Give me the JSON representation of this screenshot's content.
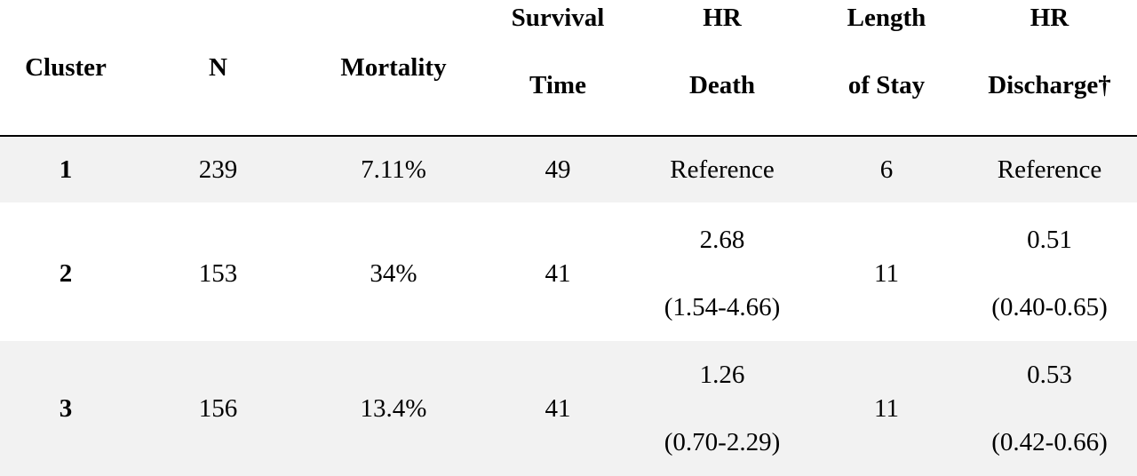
{
  "table": {
    "headers": [
      [
        "Cluster"
      ],
      [
        "N"
      ],
      [
        "Mortality"
      ],
      [
        "Survival",
        "Time"
      ],
      [
        "HR",
        "Death"
      ],
      [
        "Length",
        "of Stay"
      ],
      [
        "HR",
        "Discharge†"
      ]
    ],
    "rows": [
      {
        "cluster": "1",
        "n": "239",
        "mortality": "7.11%",
        "survival_time": "49",
        "hr_death": [
          "Reference"
        ],
        "length_of_stay": "6",
        "hr_discharge": [
          "Reference"
        ]
      },
      {
        "cluster": "2",
        "n": "153",
        "mortality": "34%",
        "survival_time": "41",
        "hr_death": [
          "2.68",
          "(1.54-4.66)"
        ],
        "length_of_stay": "11",
        "hr_discharge": [
          "0.51",
          "(0.40-0.65)"
        ]
      },
      {
        "cluster": "3",
        "n": "156",
        "mortality": "13.4%",
        "survival_time": "41",
        "hr_death": [
          "1.26",
          "(0.70-2.29)"
        ],
        "length_of_stay": "11",
        "hr_discharge": [
          "0.53",
          "(0.42-0.66)"
        ]
      }
    ]
  }
}
